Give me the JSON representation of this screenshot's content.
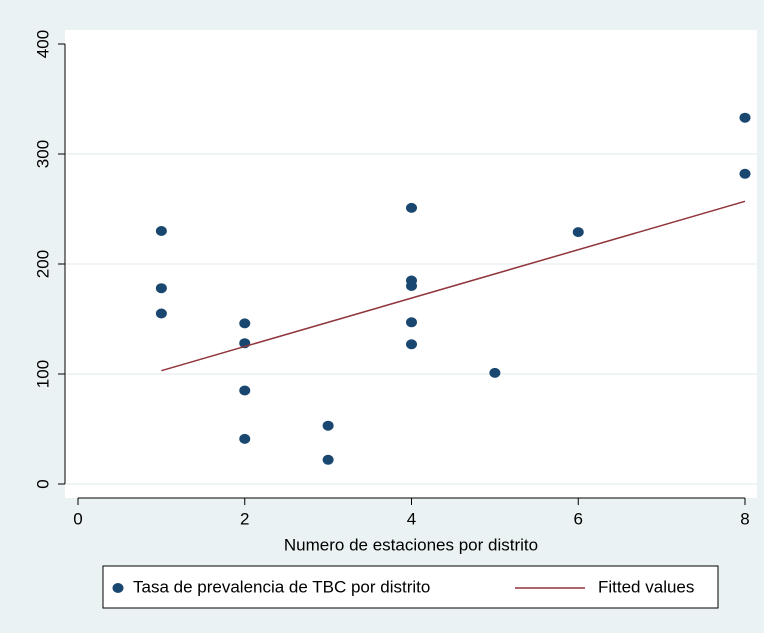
{
  "chart_data": {
    "type": "scatter",
    "x_label": "Numero de estaciones por distrito",
    "xlim": [
      0,
      8
    ],
    "xticks": [
      0,
      2,
      4,
      6,
      8
    ],
    "ylim": [
      0,
      400
    ],
    "yticks": [
      0,
      100,
      200,
      300,
      400
    ],
    "grid": true,
    "legend": "bottom",
    "series": [
      {
        "name": "Tasa de prevalencia de TBC por distrito",
        "type": "scatter",
        "color": "#1a476f",
        "x": [
          1,
          1,
          1,
          2,
          2,
          2,
          2,
          3,
          3,
          4,
          4,
          4,
          4,
          4,
          5,
          6,
          8,
          8
        ],
        "values": [
          230,
          178,
          155,
          146,
          128,
          85,
          41,
          53,
          22,
          251,
          185,
          180,
          147,
          127,
          101,
          229,
          333,
          282
        ]
      },
      {
        "name": "Fitted values",
        "type": "line",
        "color": "#90353b",
        "x": [
          1,
          8
        ],
        "values": [
          103,
          257
        ]
      }
    ]
  }
}
